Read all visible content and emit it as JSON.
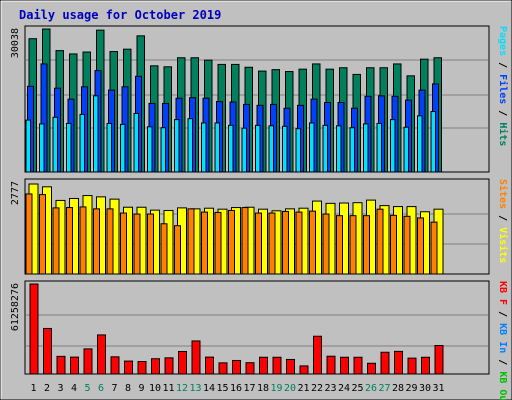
{
  "title": "Daily usage for October 2019",
  "colors": {
    "background": "#c0c0c0",
    "title": "#0000c0",
    "hits": "#00805c",
    "files": "#0040ff",
    "pages": "#00e0ff",
    "visits": "#ffff00",
    "sites": "#ff8000",
    "kbout": "#00c000",
    "kbin": "#0080ff",
    "kbf": "#ff0000",
    "kbF_bar": "#ff0000",
    "border": "#000000",
    "gridline": "#808080",
    "weekend_day": "#00805c"
  },
  "chart_data": [
    {
      "type": "bar",
      "panel": "hits-files-pages",
      "categories": [
        "1",
        "2",
        "3",
        "4",
        "5",
        "6",
        "7",
        "8",
        "9",
        "10",
        "11",
        "12",
        "13",
        "14",
        "15",
        "16",
        "17",
        "18",
        "19",
        "20",
        "21",
        "22",
        "23",
        "24",
        "25",
        "26",
        "27",
        "28",
        "29",
        "30",
        "31"
      ],
      "max_label": "30038",
      "ylim": [
        0,
        30038
      ],
      "legend_parts": [
        "Pages",
        "/",
        "Files",
        "/",
        "Hits"
      ],
      "series": [
        {
          "name": "Hits",
          "values": [
            28000,
            30038,
            25500,
            24800,
            25200,
            29800,
            25300,
            25800,
            28600,
            22300,
            22100,
            24000,
            24000,
            23500,
            22600,
            22600,
            22000,
            21200,
            21500,
            21100,
            21600,
            22700,
            21600,
            21900,
            20500,
            21900,
            21900,
            22700,
            20200,
            23700,
            24000
          ]
        },
        {
          "name": "Files",
          "values": [
            18000,
            22700,
            17600,
            15300,
            17900,
            21300,
            17200,
            17900,
            20100,
            14400,
            14400,
            15500,
            15600,
            15500,
            14800,
            14700,
            14200,
            14000,
            14200,
            13400,
            14000,
            15300,
            14600,
            14600,
            13400,
            15900,
            16000,
            15900,
            15100,
            17200,
            18500
          ]
        },
        {
          "name": "Pages",
          "values": [
            10900,
            10100,
            11500,
            10200,
            12100,
            16000,
            10200,
            10000,
            12300,
            9500,
            9300,
            11000,
            11200,
            10300,
            10300,
            9800,
            9200,
            9800,
            9700,
            9600,
            9100,
            10300,
            9800,
            9700,
            9300,
            10100,
            10200,
            11000,
            9400,
            11800,
            12700
          ]
        }
      ]
    },
    {
      "type": "bar",
      "panel": "visits-sites",
      "categories": [
        "1",
        "2",
        "3",
        "4",
        "5",
        "6",
        "7",
        "8",
        "9",
        "10",
        "11",
        "12",
        "13",
        "14",
        "15",
        "16",
        "17",
        "18",
        "19",
        "20",
        "21",
        "22",
        "23",
        "24",
        "25",
        "26",
        "27",
        "28",
        "29",
        "30",
        "31"
      ],
      "max_label": "2777",
      "ylim": [
        0,
        2777
      ],
      "legend_parts": [
        "Sites",
        "/",
        "Visits"
      ],
      "series": [
        {
          "name": "Visits",
          "values": [
            2777,
            2690,
            2270,
            2330,
            2420,
            2380,
            2310,
            2060,
            2060,
            1970,
            1960,
            2040,
            2010,
            2030,
            2000,
            2050,
            2060,
            2000,
            1950,
            2010,
            2030,
            2250,
            2180,
            2190,
            2200,
            2280,
            2110,
            2080,
            2080,
            1920,
            2000
          ]
        },
        {
          "name": "Sites",
          "values": [
            2470,
            2450,
            2040,
            2050,
            2070,
            2010,
            2010,
            1880,
            1850,
            1850,
            1550,
            1490,
            2010,
            1910,
            1900,
            1960,
            2050,
            1880,
            1880,
            1930,
            1910,
            1940,
            1850,
            1800,
            1800,
            1800,
            2000,
            1810,
            1780,
            1730,
            1600
          ]
        }
      ]
    },
    {
      "type": "bar",
      "panel": "kbytes",
      "categories": [
        "1",
        "2",
        "3",
        "4",
        "5",
        "6",
        "7",
        "8",
        "9",
        "10",
        "11",
        "12",
        "13",
        "14",
        "15",
        "16",
        "17",
        "18",
        "19",
        "20",
        "21",
        "22",
        "23",
        "24",
        "25",
        "26",
        "27",
        "28",
        "29",
        "30",
        "31"
      ],
      "max_label": "61258276",
      "ylim": [
        0,
        61258276
      ],
      "legend_parts": [
        "KB F",
        "/",
        "KB In",
        "/",
        "KB Out"
      ],
      "series": [
        {
          "name": "KB F",
          "values": [
            61258276,
            31000000,
            12000000,
            11500000,
            17100000,
            26600000,
            11700000,
            8800000,
            8500000,
            10400000,
            11000000,
            15300000,
            22500000,
            11500000,
            7600000,
            9200000,
            7700000,
            11400000,
            11400000,
            9900000,
            5500000,
            25700000,
            12100000,
            11400000,
            11400000,
            7300000,
            14800000,
            15400000,
            10800000,
            11400000,
            19400000
          ]
        }
      ]
    }
  ]
}
